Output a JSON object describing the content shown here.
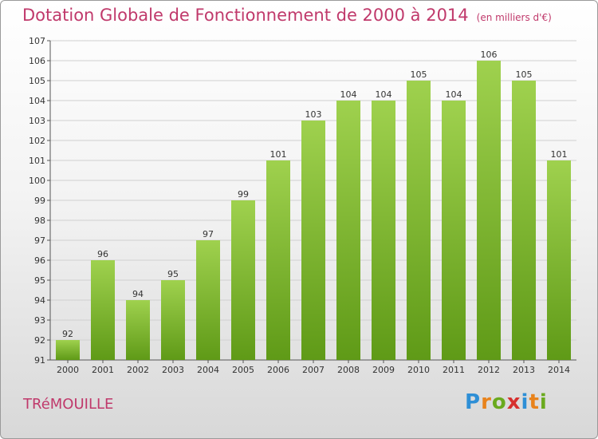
{
  "title": "Dotation Globale de Fonctionnement de 2000 à 2014",
  "unit": "(en milliers d'€)",
  "commune": "TRéMOUILLE",
  "brand": {
    "text": "Proxiti",
    "letters": [
      {
        "ch": "P",
        "color": "#2e8fd6"
      },
      {
        "ch": "r",
        "color": "#e8831c"
      },
      {
        "ch": "o",
        "color": "#6aaa1e"
      },
      {
        "ch": "x",
        "color": "#d6302e"
      },
      {
        "ch": "i",
        "color": "#2e8fd6"
      },
      {
        "ch": "t",
        "color": "#e8831c"
      },
      {
        "ch": "i",
        "color": "#6aaa1e"
      }
    ]
  },
  "colors": {
    "title": "#c0396b",
    "bar_top": "#9fd14e",
    "bar_bottom": "#5f9a17",
    "grid": "#d0d0d0"
  },
  "chart_data": {
    "type": "bar",
    "categories": [
      "2000",
      "2001",
      "2002",
      "2003",
      "2004",
      "2005",
      "2006",
      "2007",
      "2008",
      "2009",
      "2010",
      "2011",
      "2012",
      "2013",
      "2014"
    ],
    "values": [
      92,
      96,
      94,
      95,
      97,
      99,
      101,
      103,
      104,
      104,
      105,
      104,
      106,
      105,
      101
    ],
    "ylim": [
      91,
      107
    ],
    "yticks": [
      91,
      92,
      93,
      94,
      95,
      96,
      97,
      98,
      99,
      100,
      101,
      102,
      103,
      104,
      105,
      106,
      107
    ],
    "ytick_labels": [
      "91",
      "92",
      "93",
      "94",
      "95",
      "96",
      "97",
      "98",
      "99",
      "100",
      "101",
      "102",
      "103",
      "104",
      "105",
      "106",
      "107"
    ],
    "value_labels": [
      "92",
      "96",
      "94",
      "95",
      "97",
      "99",
      "101",
      "103",
      "104",
      "104",
      "105",
      "104",
      "106",
      "105",
      "101"
    ],
    "grid": true,
    "legend": "none"
  }
}
